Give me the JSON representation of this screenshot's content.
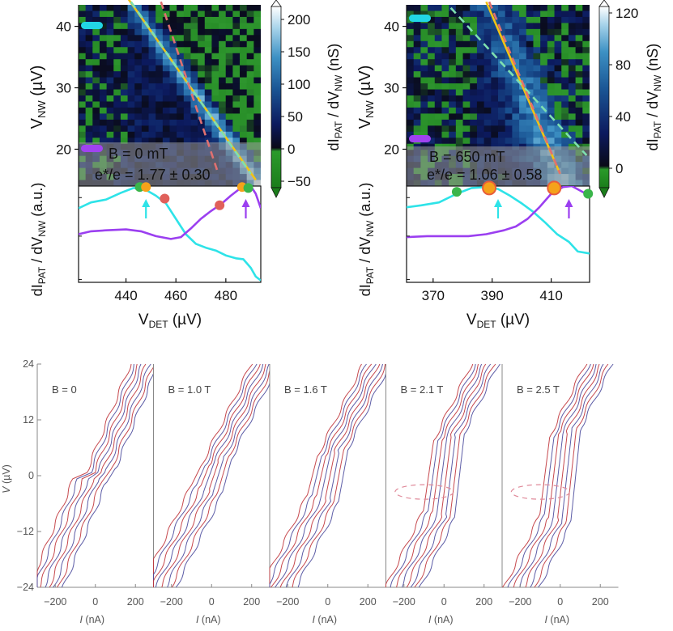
{
  "chart_data": [
    {
      "type": "heatmap",
      "panel": "top-left",
      "title": "",
      "ylabel": "V_NW (µV)",
      "yticks": [
        "20",
        "30",
        "40"
      ],
      "ylim": [
        14,
        43.5
      ],
      "xlim": [
        421,
        494
      ],
      "field_label": "B = 0 mT",
      "charge_label": "e*/e = 1.77 ± 0.30",
      "colorbar": {
        "label": "dI_PAT / dV_NW (nS)",
        "ticks": [
          "−50",
          "0",
          "50",
          "100",
          "150",
          "200"
        ],
        "range": [
          -60,
          220
        ]
      },
      "lines": [
        {
          "name": "solid fit",
          "color": "#f2c315",
          "style": "solid",
          "x": [
            440,
            492
          ],
          "y": [
            45,
            15
          ]
        },
        {
          "name": "dashed light",
          "color": "#7ee0b0",
          "style": "dashed",
          "x": [
            442,
            490
          ],
          "y": [
            44,
            16
          ]
        },
        {
          "name": "dashed red",
          "color": "#e07070",
          "style": "dashed",
          "x": [
            454,
            477
          ],
          "y": [
            44,
            16
          ]
        }
      ]
    },
    {
      "type": "heatmap",
      "panel": "top-right",
      "title": "",
      "ylabel": "V_NW (µV)",
      "yticks": [
        "20",
        "30",
        "40"
      ],
      "ylim": [
        14,
        43.5
      ],
      "xlim": [
        361,
        423
      ],
      "field_label": "B = 650 mT",
      "charge_label": "e*/e = 1.06 ± 0.58",
      "colorbar": {
        "label": "dI_PAT / dV_NW (nS)",
        "ticks": [
          "0",
          "40",
          "80",
          "120"
        ],
        "range": [
          -15,
          125
        ]
      },
      "lines": [
        {
          "name": "solid fit",
          "color": "#f2c315",
          "style": "solid",
          "x": [
            388,
            413
          ],
          "y": [
            44,
            16
          ]
        },
        {
          "name": "dashed light",
          "color": "#7ee0b0",
          "style": "dashed",
          "x": [
            376,
            422
          ],
          "y": [
            43,
            19
          ]
        },
        {
          "name": "dashed red",
          "color": "#e07070",
          "style": "dashed",
          "x": [
            389,
            413
          ],
          "y": [
            44,
            16
          ]
        }
      ]
    },
    {
      "type": "line",
      "panel": "mid-left",
      "xlabel": "V_DET (µV)",
      "ylabel": "dI_PAT / dV_NW (a.u.)",
      "xticks": [
        "440",
        "460",
        "480"
      ],
      "xtick_values": [
        440,
        460,
        480
      ],
      "xlim": [
        421,
        494
      ],
      "ylim": [
        0,
        1
      ],
      "series": [
        {
          "name": "cyan",
          "color": "#2ee3e8",
          "x": [
            421,
            426,
            432,
            438,
            443,
            448,
            452,
            456,
            460,
            464,
            468,
            472,
            476,
            480,
            484,
            487,
            490,
            492,
            494
          ],
          "y": [
            0.77,
            0.83,
            0.86,
            0.93,
            0.98,
            0.96,
            0.9,
            0.82,
            0.66,
            0.5,
            0.4,
            0.36,
            0.33,
            0.28,
            0.25,
            0.24,
            0.15,
            0.06,
            0.02
          ]
        },
        {
          "name": "purple",
          "color": "#9b3ff0",
          "x": [
            421,
            426,
            432,
            440,
            446,
            452,
            458,
            462,
            466,
            470,
            474,
            478,
            482,
            486,
            488,
            490,
            492,
            494
          ],
          "y": [
            0.5,
            0.53,
            0.54,
            0.55,
            0.53,
            0.48,
            0.45,
            0.47,
            0.56,
            0.66,
            0.74,
            0.81,
            0.9,
            0.98,
            0.99,
            1.0,
            0.92,
            0.77
          ]
        }
      ],
      "markers": [
        {
          "color": "#3ab54a",
          "x": 445.5,
          "y": 0.99
        },
        {
          "color": "#f5a21a",
          "x": 448,
          "y": 0.99
        },
        {
          "color": "#e0605a",
          "x": 455.5,
          "y": 0.87
        },
        {
          "color": "#e0605a",
          "x": 477.5,
          "y": 0.8
        },
        {
          "color": "#f5a21a",
          "x": 486.5,
          "y": 0.99
        },
        {
          "color": "#3ab54a",
          "x": 489,
          "y": 0.98
        }
      ],
      "arrows": [
        {
          "color": "#2ee3e8",
          "x": 448
        },
        {
          "color": "#9b3ff0",
          "x": 488
        }
      ]
    },
    {
      "type": "line",
      "panel": "mid-right",
      "xlabel": "V_DET (µV)",
      "ylabel": "dI_PAT / dV_NW (a.u.)",
      "xticks": [
        "370",
        "390",
        "410"
      ],
      "xtick_values": [
        370,
        390,
        410
      ],
      "xlim": [
        361,
        423
      ],
      "ylim": [
        0,
        1
      ],
      "series": [
        {
          "name": "cyan",
          "color": "#2ee3e8",
          "x": [
            361,
            366,
            372,
            378,
            383,
            388,
            392,
            396,
            400,
            404,
            408,
            412,
            416,
            419,
            423
          ],
          "y": [
            0.78,
            0.8,
            0.83,
            0.92,
            0.98,
            0.99,
            0.97,
            0.9,
            0.82,
            0.73,
            0.62,
            0.5,
            0.42,
            0.32,
            0.3
          ]
        },
        {
          "name": "purple",
          "color": "#9b3ff0",
          "x": [
            361,
            368,
            375,
            382,
            388,
            394,
            398,
            402,
            406,
            410,
            414,
            417,
            420,
            423
          ],
          "y": [
            0.47,
            0.48,
            0.48,
            0.48,
            0.5,
            0.54,
            0.58,
            0.66,
            0.78,
            0.92,
            0.99,
            1.0,
            0.95,
            0.9
          ]
        }
      ],
      "markers": [
        {
          "color": "#3ab54a",
          "x": 378,
          "y": 0.94,
          "size": "small"
        },
        {
          "color": "#f5a21a",
          "x": 389,
          "y": 0.98,
          "size": "large"
        },
        {
          "color": "#f5a21a",
          "x": 411,
          "y": 0.98,
          "size": "large"
        },
        {
          "color": "#3ab54a",
          "x": 422.5,
          "y": 0.92,
          "size": "small"
        }
      ],
      "arrows": [
        {
          "color": "#2ee3e8",
          "x": 392
        },
        {
          "color": "#9b3ff0",
          "x": 416
        }
      ]
    },
    {
      "type": "line",
      "panel": "bottom",
      "description_free": true,
      "ylabel": "V (µV)",
      "xlabel": "I (nA)",
      "yticks": [
        "−24",
        "−12",
        "0",
        "12",
        "24"
      ],
      "ytick_values": [
        -24,
        -12,
        0,
        12,
        24
      ],
      "xticks": [
        "−200",
        "0",
        "200"
      ],
      "xtick_values": [
        -200,
        0,
        200
      ],
      "xlim": [
        -290,
        290
      ],
      "ylim": [
        -24,
        24
      ],
      "panels": [
        {
          "title": "B = 0",
          "gap": 0,
          "dashed_ellipse": false
        },
        {
          "title": "B = 1.0 T",
          "gap": 2.2,
          "dashed_ellipse": false
        },
        {
          "title": "B = 1.6 T",
          "gap": 4.2,
          "dashed_ellipse": false
        },
        {
          "title": "B = 2.1 T",
          "gap": 7.5,
          "dashed_ellipse": true
        },
        {
          "title": "B = 2.5 T",
          "gap": 8.5,
          "dashed_ellipse": true
        }
      ],
      "series_colors": [
        "#c0343a",
        "#4a4a9c"
      ]
    }
  ]
}
